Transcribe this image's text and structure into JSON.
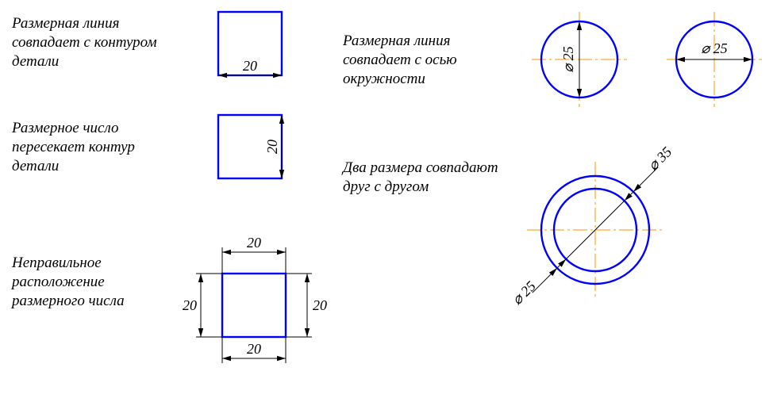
{
  "colors": {
    "contour": "#0000ff",
    "center": "#ff9500",
    "dim": "#000000",
    "text": "#000000",
    "bg": "#ffffff"
  },
  "stroke": {
    "contour_w": 2.4,
    "center_w": 1,
    "dim_w": 1
  },
  "fontsize": {
    "label": 19,
    "dim": 18
  },
  "labels": {
    "l1": "Размерная линия совпадает с контуром детали",
    "l2": "Размерное число пересекает контур детали",
    "l3": "Неправильное расположение размерного числа",
    "r1": "Размерная линия совпадает с осью окружности",
    "r2": "Два размера совпадают друг с другом"
  },
  "dims": {
    "sq1": "20",
    "sq2": "20",
    "sq3_top": "20",
    "sq3_bot": "20",
    "sq3_left": "20",
    "sq3_right": "20",
    "c1": "⌀ 25",
    "c2": "⌀ 25",
    "ring_outer": "⌀ 35",
    "ring_inner": "⌀ 25"
  },
  "geom": {
    "square_side": 80,
    "circle_r": 48,
    "ring_outer_r": 68,
    "ring_inner_r": 52
  }
}
